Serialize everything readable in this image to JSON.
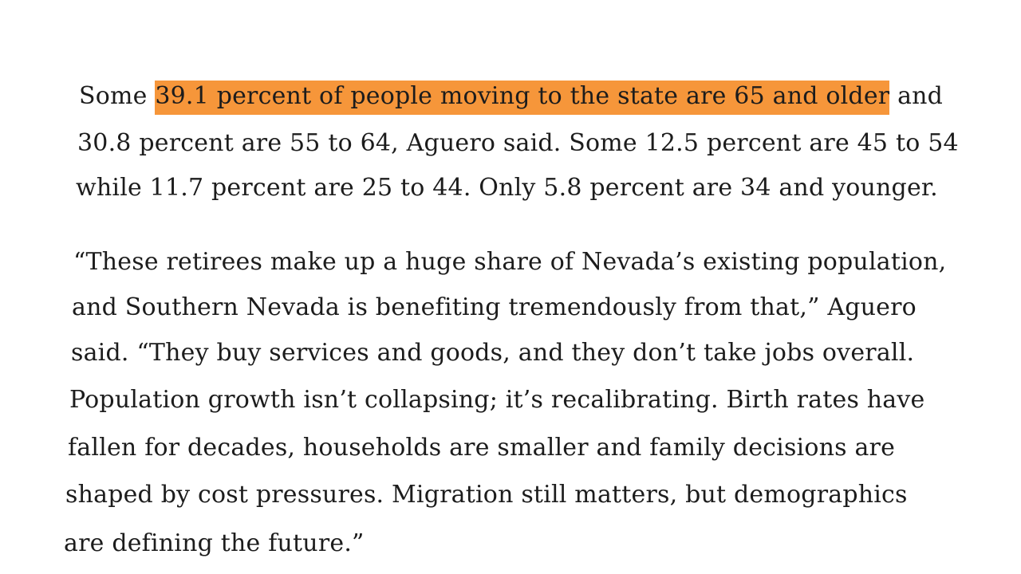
{
  "article": {
    "paragraph1": {
      "line1_before": "Some ",
      "line1_highlight": "39.1 percent of people moving to the state are 65 and older",
      "line1_after": " and",
      "line2": "30.8 percent are 55 to 64, Aguero said. Some 12.5 percent are 45 to 54",
      "line3": "while 11.7 percent are 25 to 44. Only 5.8 percent are 34 and younger."
    },
    "paragraph2": {
      "line1": "“These retirees make up a huge share of Nevada’s existing population,",
      "line2": "and Southern Nevada is benefiting tremendously from that,” Aguero",
      "line3": "said. “They buy services and goods, and they don’t take jobs overall.",
      "line4": "Population growth isn’t collapsing; it’s recalibrating. Birth rates have",
      "line5": "fallen for decades, households are smaller and family decisions are",
      "line6": "shaped by cost pressures. Migration still matters, but demographics",
      "line7": "are defining the future.”"
    },
    "highlight_color": "#f6963a"
  }
}
